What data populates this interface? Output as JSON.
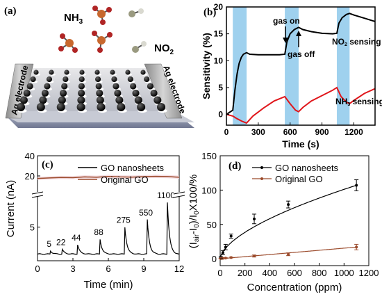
{
  "panel_a": {
    "label": "(a)",
    "molecule_labels": [
      "NH3",
      "NO2"
    ],
    "electrode_left": "Ag electrode",
    "electrode_right": "Ag electrode"
  },
  "colors": {
    "gas_on_band": "#9fd1ee",
    "black_series": "#000000",
    "red_series": "#e0161b",
    "brown_series": "#9b4a2b",
    "original_band": "#f2d6dc"
  },
  "chart_data": [
    {
      "panel": "(b)",
      "type": "line",
      "xlabel": "Time (s)",
      "ylabel": "Sensitivity (%)",
      "xlim": [
        0,
        1400
      ],
      "ylim": [
        -2,
        20
      ],
      "xticks": [
        "0",
        "300",
        "600",
        "900",
        "1200"
      ],
      "yticks": [
        "0",
        "5",
        "10",
        "15",
        "20"
      ],
      "gas_on_intervals": [
        [
          60,
          190
        ],
        [
          550,
          680
        ],
        [
          1040,
          1160
        ]
      ],
      "annotations": [
        "gas on",
        "gas off"
      ],
      "series": [
        {
          "name": "NO2 sensing",
          "color": "black",
          "x": [
            0,
            60,
            80,
            100,
            120,
            140,
            160,
            190,
            220,
            300,
            400,
            500,
            550,
            570,
            600,
            640,
            680,
            720,
            800,
            900,
            1000,
            1040,
            1060,
            1090,
            1130,
            1160,
            1200,
            1300,
            1400
          ],
          "y": [
            0,
            0.8,
            4.5,
            7.5,
            9.5,
            10.6,
            11.2,
            11.5,
            11.2,
            11.1,
            11.1,
            11.1,
            11.2,
            13.5,
            15.0,
            15.8,
            16.2,
            15.8,
            15.4,
            15.1,
            15.0,
            15.1,
            17.0,
            18.0,
            18.6,
            18.8,
            18.5,
            17.9,
            17.3
          ]
        },
        {
          "name": "NH3 sensing",
          "color": "red",
          "x": [
            0,
            60,
            100,
            150,
            190,
            250,
            350,
            450,
            550,
            600,
            650,
            680,
            720,
            800,
            900,
            1000,
            1040,
            1080,
            1130,
            1160,
            1200,
            1300,
            1400
          ],
          "y": [
            0,
            -0.3,
            -0.8,
            -1.3,
            -1.6,
            -0.3,
            1.2,
            2.5,
            3.3,
            2.0,
            0.8,
            0.5,
            1.3,
            2.5,
            3.5,
            4.5,
            5.0,
            3.3,
            2.3,
            2.0,
            2.6,
            3.9,
            4.8
          ]
        }
      ]
    },
    {
      "panel": "(c)",
      "type": "line",
      "xlabel": "Time (min)",
      "ylabel": "Current (nA)",
      "xlim": [
        0,
        12
      ],
      "xticks": [
        "0",
        "3",
        "6",
        "9",
        "12"
      ],
      "yticks_upper": [
        "20",
        "40"
      ],
      "yticks_lower": [
        "5"
      ],
      "concentration_labels": [
        "5",
        "22",
        "44",
        "88",
        "275",
        "550",
        "1100"
      ],
      "series": [
        {
          "name": "GO nanosheets",
          "color": "black",
          "peak_times": [
            1.1,
            2.1,
            3.4,
            5.3,
            7.4,
            9.3,
            11.0
          ],
          "peak_values": [
            1.45,
            1.7,
            2.4,
            3.2,
            5.0,
            6.1,
            8.7
          ],
          "baseline": 1.0
        },
        {
          "name": "Original GO",
          "color": "brown",
          "x": [
            0,
            1,
            2,
            3,
            4,
            5,
            6,
            7,
            8,
            9,
            10,
            11,
            12
          ],
          "y": [
            17.5,
            18.0,
            18.5,
            18.3,
            19.0,
            18.7,
            19.5,
            19.0,
            18.8,
            19.3,
            19.6,
            19.4,
            18.7
          ]
        }
      ]
    },
    {
      "panel": "(d)",
      "type": "line",
      "xlabel": "Concentration (ppm)",
      "ylabel": "(Iair-I0)/I0X100/%",
      "xlim": [
        0,
        1200
      ],
      "ylim": [
        -10,
        150
      ],
      "xticks": [
        "0",
        "200",
        "400",
        "600",
        "800",
        "1000",
        "1200"
      ],
      "yticks": [
        "0",
        "50",
        "100",
        "150"
      ],
      "series": [
        {
          "name": "GO nanosheets",
          "color": "black",
          "x": [
            5,
            22,
            44,
            88,
            275,
            550,
            1100
          ],
          "y": [
            2,
            9,
            17,
            33,
            58,
            79,
            107
          ],
          "err": [
            1,
            3,
            4,
            3,
            7,
            5,
            8
          ]
        },
        {
          "name": "Original GO",
          "color": "brown",
          "x": [
            5,
            22,
            44,
            88,
            275,
            550,
            1100
          ],
          "y": [
            0.3,
            0.6,
            1.0,
            1.8,
            4.0,
            6.5,
            17
          ],
          "err": [
            0.3,
            0.4,
            0.5,
            0.7,
            1.5,
            2.0,
            4
          ]
        }
      ]
    }
  ]
}
